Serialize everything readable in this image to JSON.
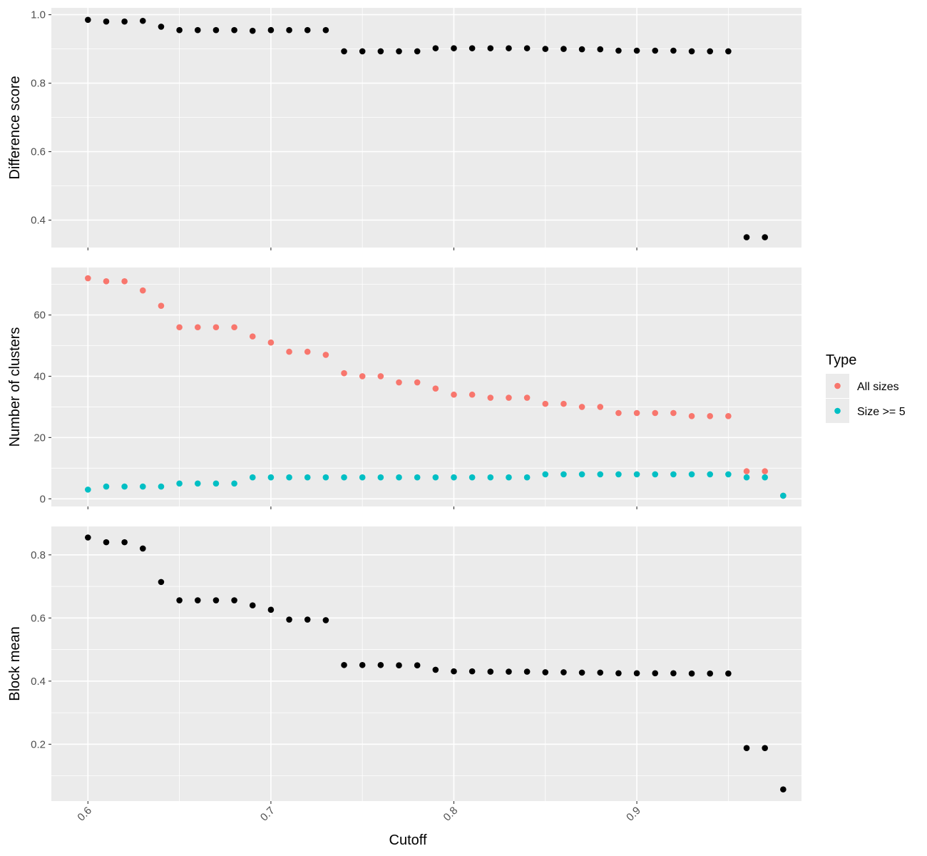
{
  "chart_data": [
    {
      "type": "scatter",
      "panel": "top",
      "ylabel": "Difference score",
      "xlim": [
        0.58,
        0.99
      ],
      "ylim": [
        0.32,
        1.02
      ],
      "yticks": [
        0.4,
        0.6,
        0.8,
        1.0
      ],
      "ytick_labels": [
        "0.4",
        "0.6",
        "0.8",
        "1.0"
      ],
      "yminor": [
        0.3,
        0.5,
        0.7,
        0.9
      ],
      "grid": true,
      "series": [
        {
          "color": "#000000",
          "x": [
            0.6,
            0.61,
            0.62,
            0.63,
            0.64,
            0.65,
            0.66,
            0.67,
            0.68,
            0.69,
            0.7,
            0.71,
            0.72,
            0.73,
            0.74,
            0.75,
            0.76,
            0.77,
            0.78,
            0.79,
            0.8,
            0.81,
            0.82,
            0.83,
            0.84,
            0.85,
            0.86,
            0.87,
            0.88,
            0.89,
            0.9,
            0.91,
            0.92,
            0.93,
            0.94,
            0.95,
            0.96,
            0.97
          ],
          "y": [
            0.985,
            0.98,
            0.98,
            0.982,
            0.965,
            0.955,
            0.955,
            0.955,
            0.955,
            0.953,
            0.955,
            0.955,
            0.955,
            0.955,
            0.893,
            0.893,
            0.893,
            0.893,
            0.893,
            0.902,
            0.902,
            0.902,
            0.902,
            0.902,
            0.902,
            0.9,
            0.9,
            0.899,
            0.899,
            0.895,
            0.895,
            0.895,
            0.895,
            0.893,
            0.893,
            0.893,
            0.35,
            0.35
          ]
        }
      ]
    },
    {
      "type": "scatter",
      "panel": "middle",
      "ylabel": "Number of clusters",
      "xlim": [
        0.58,
        0.99
      ],
      "ylim": [
        -2.5,
        75.5
      ],
      "yticks": [
        0,
        20,
        40,
        60
      ],
      "ytick_labels": [
        "0",
        "20",
        "40",
        "60"
      ],
      "yminor": [
        10,
        30,
        50,
        70
      ],
      "grid": true,
      "legend": {
        "title": "Type",
        "placement": "right",
        "entries": [
          {
            "label": "All sizes",
            "color": "#F8766D"
          },
          {
            "label": "Size >= 5",
            "color": "#00BFC4"
          }
        ]
      },
      "series": [
        {
          "name": "All sizes",
          "color": "#F8766D",
          "x": [
            0.6,
            0.61,
            0.62,
            0.63,
            0.64,
            0.65,
            0.66,
            0.67,
            0.68,
            0.69,
            0.7,
            0.71,
            0.72,
            0.73,
            0.74,
            0.75,
            0.76,
            0.77,
            0.78,
            0.79,
            0.8,
            0.81,
            0.82,
            0.83,
            0.84,
            0.85,
            0.86,
            0.87,
            0.88,
            0.89,
            0.9,
            0.91,
            0.92,
            0.93,
            0.94,
            0.95,
            0.96,
            0.97,
            0.98
          ],
          "y": [
            72,
            71,
            71,
            68,
            63,
            56,
            56,
            56,
            56,
            53,
            51,
            48,
            48,
            47,
            41,
            40,
            40,
            38,
            38,
            36,
            34,
            34,
            33,
            33,
            33,
            31,
            31,
            30,
            30,
            28,
            28,
            28,
            28,
            27,
            27,
            27,
            9,
            9,
            1
          ]
        },
        {
          "name": "Size >= 5",
          "color": "#00BFC4",
          "x": [
            0.6,
            0.61,
            0.62,
            0.63,
            0.64,
            0.65,
            0.66,
            0.67,
            0.68,
            0.69,
            0.7,
            0.71,
            0.72,
            0.73,
            0.74,
            0.75,
            0.76,
            0.77,
            0.78,
            0.79,
            0.8,
            0.81,
            0.82,
            0.83,
            0.84,
            0.85,
            0.86,
            0.87,
            0.88,
            0.89,
            0.9,
            0.91,
            0.92,
            0.93,
            0.94,
            0.95,
            0.96,
            0.97,
            0.98
          ],
          "y": [
            3,
            4,
            4,
            4,
            4,
            5,
            5,
            5,
            5,
            7,
            7,
            7,
            7,
            7,
            7,
            7,
            7,
            7,
            7,
            7,
            7,
            7,
            7,
            7,
            7,
            8,
            8,
            8,
            8,
            8,
            8,
            8,
            8,
            8,
            8,
            8,
            7,
            7,
            1
          ]
        }
      ]
    },
    {
      "type": "scatter",
      "panel": "bottom",
      "ylabel": "Block mean",
      "xlabel": "Cutoff",
      "xlim": [
        0.58,
        0.99
      ],
      "ylim": [
        0.02,
        0.89
      ],
      "yticks": [
        0.2,
        0.4,
        0.6,
        0.8
      ],
      "ytick_labels": [
        "0.2",
        "0.4",
        "0.6",
        "0.8"
      ],
      "yminor": [
        0.1,
        0.3,
        0.5,
        0.7
      ],
      "xticks": [
        0.6,
        0.7,
        0.8,
        0.9
      ],
      "xtick_labels": [
        "0.6",
        "0.7",
        "0.8",
        "0.9"
      ],
      "xminor": [
        0.65,
        0.75,
        0.85,
        0.95
      ],
      "grid": true,
      "series": [
        {
          "color": "#000000",
          "x": [
            0.6,
            0.61,
            0.62,
            0.63,
            0.64,
            0.65,
            0.66,
            0.67,
            0.68,
            0.69,
            0.7,
            0.71,
            0.72,
            0.73,
            0.74,
            0.75,
            0.76,
            0.77,
            0.78,
            0.79,
            0.8,
            0.81,
            0.82,
            0.83,
            0.84,
            0.85,
            0.86,
            0.87,
            0.88,
            0.89,
            0.9,
            0.91,
            0.92,
            0.93,
            0.94,
            0.95,
            0.96,
            0.97,
            0.98
          ],
          "y": [
            0.855,
            0.84,
            0.84,
            0.82,
            0.714,
            0.656,
            0.656,
            0.656,
            0.656,
            0.64,
            0.626,
            0.595,
            0.595,
            0.593,
            0.451,
            0.451,
            0.451,
            0.45,
            0.45,
            0.436,
            0.431,
            0.431,
            0.43,
            0.43,
            0.43,
            0.428,
            0.428,
            0.427,
            0.427,
            0.425,
            0.425,
            0.425,
            0.425,
            0.424,
            0.424,
            0.424,
            0.188,
            0.188,
            0.057
          ]
        }
      ]
    }
  ]
}
